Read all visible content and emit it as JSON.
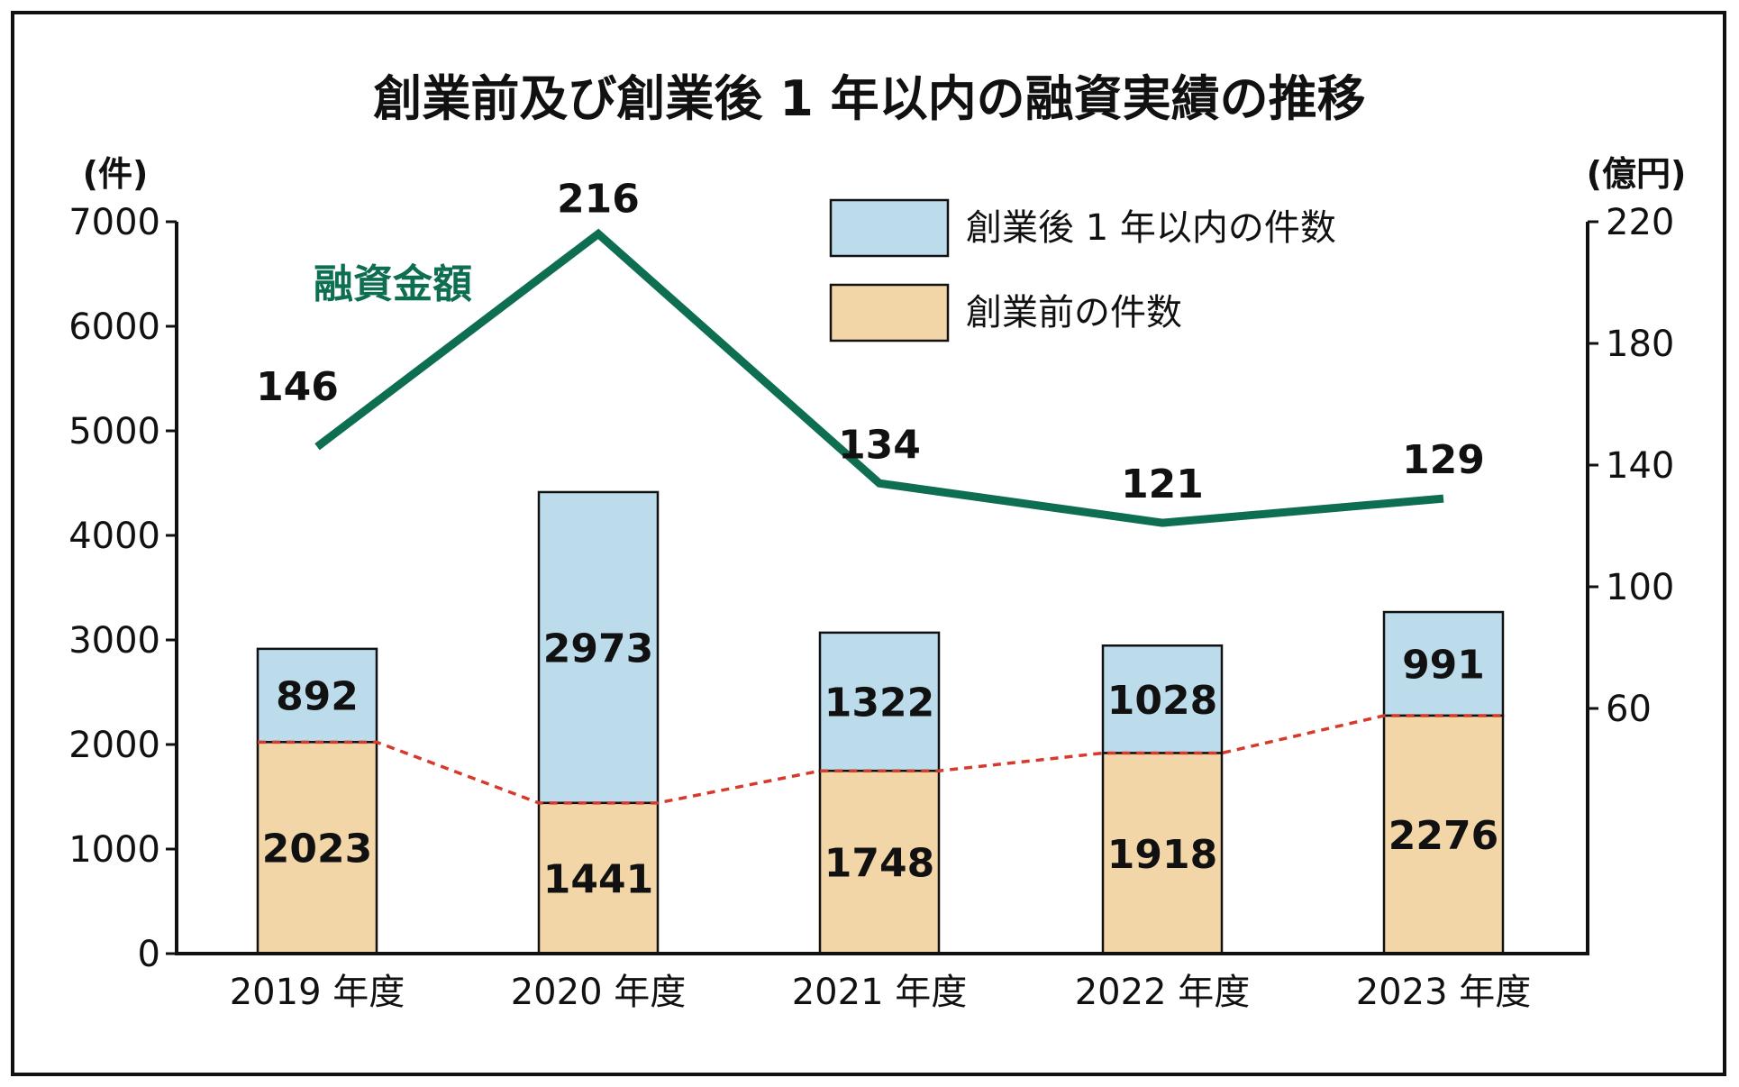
{
  "chart_data": {
    "type": "bar",
    "title": "創業前及び創業後 1 年以内の融資実績の推移",
    "left_axis": {
      "unit": "(件)",
      "ylim": [
        0,
        7000
      ],
      "ticks": [
        "0",
        "1000",
        "2000",
        "3000",
        "4000",
        "5000",
        "6000",
        "7000"
      ]
    },
    "right_axis": {
      "unit": "(億円)",
      "ticks": [
        "60",
        "100",
        "140",
        "180",
        "220"
      ]
    },
    "categories": [
      "2019 年度",
      "2020 年度",
      "2021 年度",
      "2022 年度",
      "2023 年度"
    ],
    "series": [
      {
        "name": "創業前の件数",
        "kind": "bar",
        "stack": "bottom",
        "color": "#f3d6a8",
        "values": [
          2023,
          1441,
          1748,
          1918,
          2276
        ],
        "labels": [
          "2023",
          "1441",
          "1748",
          "1918",
          "2276"
        ]
      },
      {
        "name": "創業後 1 年以内の件数",
        "kind": "bar",
        "stack": "top",
        "color": "#bcdcec",
        "values": [
          892,
          2973,
          1322,
          1028,
          991
        ],
        "labels": [
          "892",
          "2973",
          "1322",
          "1028",
          "991"
        ]
      },
      {
        "name": "融資金額",
        "kind": "line",
        "axis": "right",
        "color": "#0e6e52",
        "values": [
          146,
          216,
          134,
          121,
          129
        ],
        "labels": [
          "146",
          "216",
          "134",
          "121",
          "129"
        ]
      }
    ],
    "legend": {
      "placement": "top-right"
    },
    "connector_color": "#d63a2c",
    "highlight_color": "#e05050"
  }
}
